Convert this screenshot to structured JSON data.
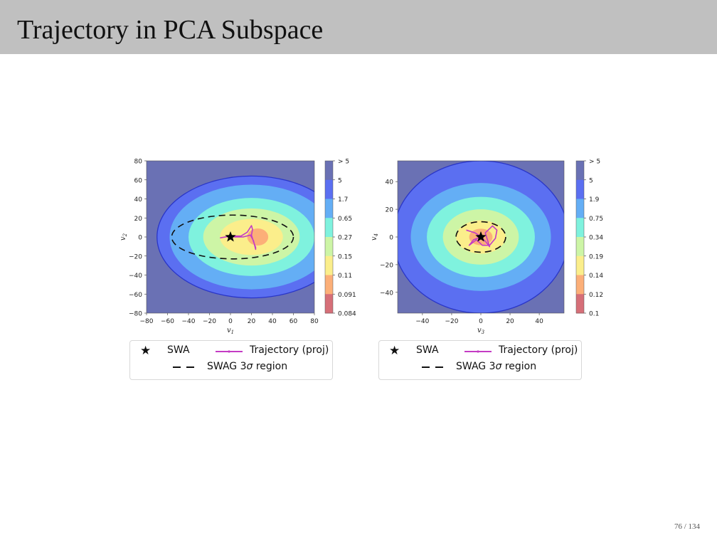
{
  "slide": {
    "title": "Trajectory in PCA Subspace",
    "page_label": "76 / 134"
  },
  "colors": {
    "levels": [
      "#6a71b4",
      "#5b6ff1",
      "#64aef5",
      "#7ff2de",
      "#cdf5a6",
      "#fbee8b",
      "#fcaf78",
      "#d66f78"
    ],
    "trajectory": "#c43cc4",
    "header_bg": "#c0c0c0"
  },
  "legend": {
    "swa": "SWA",
    "trajectory": "Trajectory (proj)",
    "swag_region": "SWAG 3",
    "sigma": "σ",
    "region_word": "region"
  },
  "chart_data": [
    {
      "type": "contour",
      "xlabel": "v",
      "xlabel_sub": "1",
      "ylabel": "v",
      "ylabel_sub": "2",
      "xlim": [
        -80,
        80
      ],
      "ylim": [
        -80,
        80
      ],
      "xticks": [
        "−80",
        "−60",
        "−40",
        "−20",
        "0",
        "20",
        "40",
        "60",
        "80"
      ],
      "yticks": [
        "80",
        "60",
        "40",
        "20",
        "0",
        "−20",
        "−40",
        "−60",
        "−80"
      ],
      "colorbar_labels": [
        "> 5",
        "5",
        "1.7",
        "0.65",
        "0.27",
        "0.15",
        "0.11",
        "0.091",
        "0.084"
      ],
      "contour_levels": [
        {
          "rx": 90,
          "ry": 64
        },
        {
          "rx": 78,
          "ry": 55
        },
        {
          "rx": 60,
          "ry": 41
        },
        {
          "rx": 46,
          "ry": 30
        },
        {
          "rx": 30,
          "ry": 19
        },
        {
          "rx": 10,
          "ry": 9
        }
      ],
      "contour_center": [
        20,
        0
      ],
      "inner_center": [
        26,
        0
      ],
      "swa": [
        0,
        0
      ],
      "swag_3sigma": {
        "cx": 2,
        "cy": 0,
        "rx": 58,
        "ry": 23
      },
      "trajectory": [
        [
          -10,
          -1
        ],
        [
          0,
          1
        ],
        [
          10,
          1
        ],
        [
          16,
          5
        ],
        [
          20,
          12
        ],
        [
          21,
          8
        ],
        [
          20,
          2
        ],
        [
          22,
          -5
        ],
        [
          24,
          -11
        ],
        [
          24,
          -13
        ],
        [
          22,
          -4
        ],
        [
          19,
          2
        ],
        [
          12,
          0
        ],
        [
          3,
          0
        ]
      ]
    },
    {
      "type": "contour",
      "xlabel": "v",
      "xlabel_sub": "3",
      "ylabel": "v",
      "ylabel_sub": "4",
      "xlim": [
        -57,
        57
      ],
      "ylim": [
        -55,
        55
      ],
      "xticks": [
        "−40",
        "−20",
        "0",
        "20",
        "40"
      ],
      "yticks": [
        "40",
        "20",
        "0",
        "−20",
        "−40"
      ],
      "colorbar_labels": [
        "> 5",
        "5",
        "1.9",
        "0.75",
        "0.34",
        "0.19",
        "0.14",
        "0.12",
        "0.1"
      ],
      "contour_levels": [
        {
          "rx": 60,
          "ry": 55
        },
        {
          "rx": 48,
          "ry": 39
        },
        {
          "rx": 37,
          "ry": 29
        },
        {
          "rx": 26,
          "ry": 20
        },
        {
          "rx": 17,
          "ry": 12
        },
        {
          "rx": 8,
          "ry": 6
        }
      ],
      "contour_center": [
        0,
        0
      ],
      "inner_center": [
        0,
        0
      ],
      "swa": [
        0,
        0
      ],
      "swag_3sigma": {
        "cx": 0,
        "cy": 0,
        "rx": 17,
        "ry": 11
      },
      "trajectory": [
        [
          -10,
          5
        ],
        [
          -4,
          3
        ],
        [
          -1,
          1
        ],
        [
          3,
          -3
        ],
        [
          6,
          -7
        ],
        [
          3,
          3
        ],
        [
          8,
          8
        ],
        [
          11,
          5
        ],
        [
          10,
          -1
        ],
        [
          6,
          -6
        ],
        [
          1,
          -6
        ],
        [
          -3,
          -2
        ],
        [
          -8,
          -6
        ],
        [
          -5,
          -2
        ],
        [
          0,
          0
        ]
      ]
    }
  ]
}
